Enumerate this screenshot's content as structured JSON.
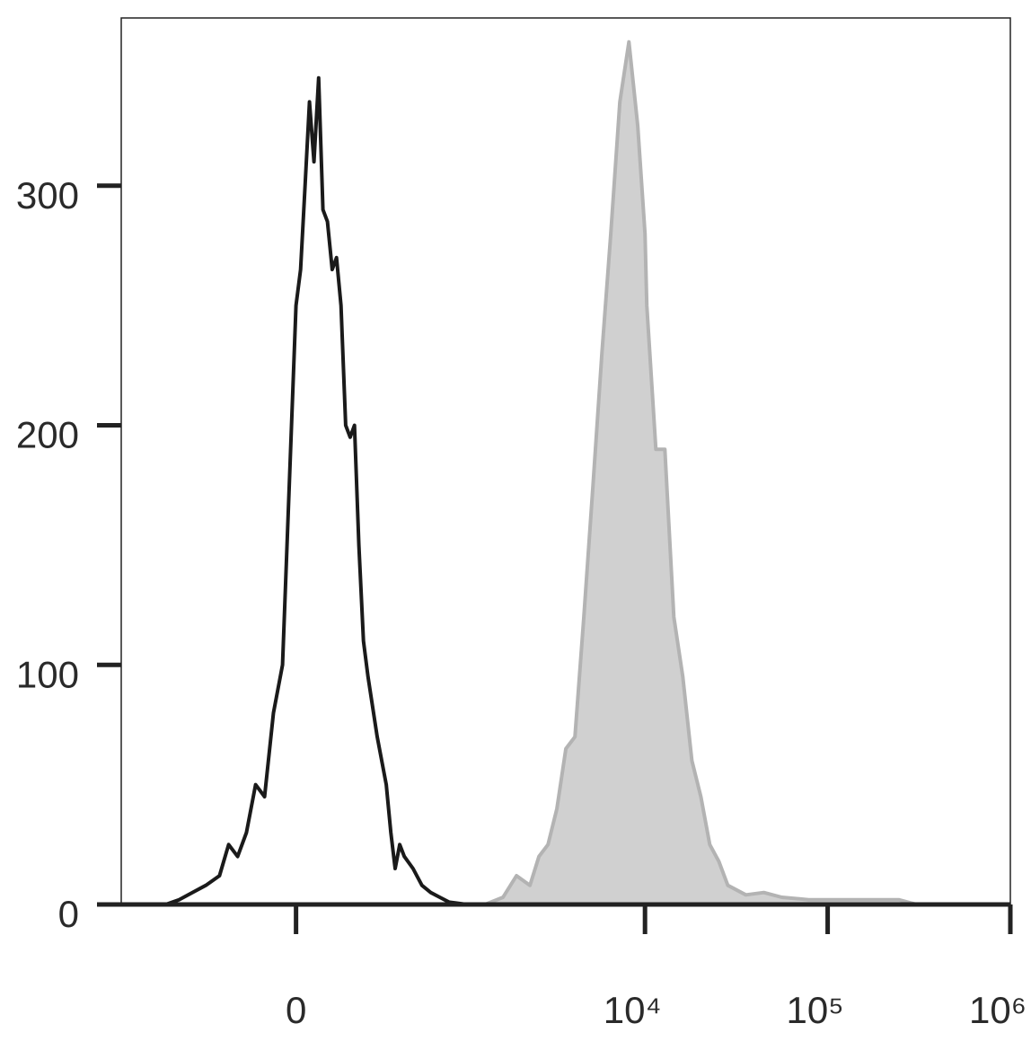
{
  "chart_data": {
    "type": "histogram",
    "xscale": "biexponential",
    "xlim": [
      -1100,
      1000000
    ],
    "xticks": [
      0,
      {
        "value": 10000,
        "label": "10⁴"
      },
      {
        "value": 100000,
        "label": "10⁵"
      },
      {
        "value": 1000000,
        "label": "10⁶"
      }
    ],
    "ylim": [
      0,
      370
    ],
    "yticks": [
      0,
      100,
      200,
      300
    ],
    "series": [
      {
        "color": "#b3b3b3",
        "fill": "#d0d0d0",
        "x": [
          509,
          1321,
          1661,
          1973,
          2339,
          2622,
          2940,
          3291,
          3687,
          4133,
          4625,
          5191,
          5806,
          6494,
          7282,
          8167,
          9127,
          10000,
          10234,
          11464,
          12841,
          14391,
          16113,
          18056,
          20221,
          22632,
          25363,
          28413,
          35645,
          44747,
          56088,
          78720,
          138744,
          245000,
          307254,
          1000000
        ],
        "values": [
          0,
          0,
          3,
          12,
          8,
          20,
          25,
          40,
          65,
          70,
          120,
          175,
          230,
          280,
          335,
          360,
          325,
          280,
          250,
          190,
          190,
          120,
          95,
          60,
          45,
          25,
          18,
          8,
          4,
          5,
          3,
          2,
          2,
          2,
          0,
          0
        ]
      },
      {
        "color": "#1a1a1a",
        "x": [
          -612,
          -509,
          -421,
          -344,
          -276,
          -235,
          -198,
          -164,
          -131,
          -100,
          -71,
          -42,
          -28,
          -14,
          0,
          14,
          28,
          42,
          56,
          71,
          85,
          100,
          116,
          131,
          147,
          164,
          181,
          198,
          216,
          235,
          255,
          298,
          344,
          369,
          394,
          421,
          450,
          509,
          576,
          649,
          733,
          827,
          1048,
          1661,
          1000000
        ],
        "values": [
          0,
          2,
          5,
          8,
          12,
          25,
          20,
          30,
          50,
          45,
          80,
          100,
          150,
          200,
          250,
          265,
          300,
          335,
          310,
          345,
          290,
          285,
          265,
          270,
          250,
          200,
          195,
          200,
          150,
          110,
          95,
          70,
          50,
          30,
          15,
          25,
          20,
          15,
          8,
          5,
          3,
          1,
          0,
          0,
          0
        ]
      }
    ]
  }
}
